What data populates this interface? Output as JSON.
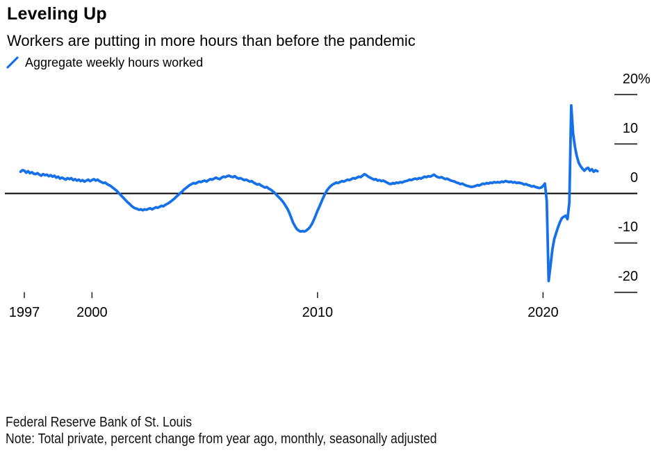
{
  "header": {
    "title": "Leveling Up",
    "subtitle": "Workers are putting in more hours than before the pandemic"
  },
  "legend": {
    "label": "Aggregate weekly hours worked",
    "color": "#1670e8"
  },
  "footer": {
    "source": "Federal Reserve Bank of St. Louis",
    "note": "Note: Total private, percent change from year ago, monthly, seasonally adjusted"
  },
  "chart_data": {
    "type": "line",
    "title": "Leveling Up",
    "subtitle": "Workers are putting in more hours than before the pandemic",
    "ylabel": "percent change from year ago",
    "grid": false,
    "zero_line": true,
    "legend_position": "top-left",
    "axis_color": "#000000",
    "tick_color": "#3d3d3d",
    "xlim": [
      1996.83,
      2022.6
    ],
    "ylim": [
      -22,
      21
    ],
    "x_ticks": [
      {
        "label": "1997",
        "year": 1997
      },
      {
        "label": "2000",
        "year": 2000
      },
      {
        "label": "2010",
        "year": 2010
      },
      {
        "label": "2020",
        "year": 2020
      }
    ],
    "y_ticks": [
      {
        "label": "20",
        "suffix": "%",
        "value": 20
      },
      {
        "label": "10",
        "suffix": "",
        "value": 10
      },
      {
        "label": "0",
        "suffix": "",
        "value": 0
      },
      {
        "label": "-10",
        "suffix": "",
        "value": -10
      },
      {
        "label": "-20",
        "suffix": "",
        "value": -20
      }
    ],
    "series": [
      {
        "name": "Aggregate weekly hours worked",
        "color": "#1670e8",
        "x_start_year": 1996.8333,
        "x_step_years": 0.08333,
        "values": [
          4.4,
          4.7,
          4.6,
          4.2,
          4.5,
          4.1,
          4.3,
          4.0,
          3.9,
          4.1,
          3.8,
          3.6,
          3.9,
          3.7,
          3.8,
          3.5,
          3.7,
          3.4,
          3.6,
          3.2,
          3.4,
          3.0,
          3.2,
          3.0,
          2.8,
          3.1,
          2.9,
          3.1,
          2.7,
          2.9,
          2.6,
          2.8,
          2.5,
          2.7,
          2.4,
          2.6,
          2.8,
          2.5,
          2.7,
          2.9,
          2.6,
          2.8,
          2.5,
          2.3,
          2.1,
          2.2,
          1.9,
          1.7,
          1.5,
          1.2,
          0.9,
          0.6,
          0.2,
          -0.2,
          -0.6,
          -1.0,
          -1.4,
          -1.8,
          -2.1,
          -2.5,
          -2.8,
          -3.0,
          -3.1,
          -3.3,
          -3.2,
          -3.4,
          -3.2,
          -3.3,
          -3.1,
          -3.0,
          -3.2,
          -3.0,
          -2.8,
          -2.9,
          -2.7,
          -2.5,
          -2.6,
          -2.3,
          -2.1,
          -1.9,
          -1.6,
          -1.3,
          -1.0,
          -0.6,
          -0.3,
          0.1,
          0.4,
          0.8,
          1.1,
          1.4,
          1.7,
          1.9,
          2.1,
          2.0,
          2.2,
          2.4,
          2.3,
          2.5,
          2.6,
          2.4,
          2.7,
          2.9,
          2.8,
          3.0,
          3.2,
          3.0,
          2.9,
          3.2,
          3.4,
          3.3,
          3.5,
          3.6,
          3.4,
          3.3,
          3.5,
          3.2,
          3.0,
          3.1,
          2.9,
          2.7,
          2.8,
          2.6,
          2.4,
          2.5,
          2.2,
          2.0,
          1.8,
          1.9,
          1.6,
          1.4,
          1.2,
          1.3,
          1.0,
          0.8,
          0.5,
          0.2,
          -0.2,
          -0.6,
          -1.0,
          -1.4,
          -1.9,
          -2.5,
          -3.1,
          -3.9,
          -4.9,
          -5.9,
          -6.6,
          -7.2,
          -7.5,
          -7.7,
          -7.6,
          -7.7,
          -7.5,
          -7.2,
          -6.8,
          -6.2,
          -5.4,
          -4.5,
          -3.5,
          -2.7,
          -1.8,
          -0.9,
          -0.1,
          0.6,
          1.1,
          1.5,
          1.8,
          2.0,
          2.2,
          2.1,
          2.3,
          2.5,
          2.4,
          2.6,
          2.8,
          2.7,
          2.9,
          3.1,
          3.0,
          3.2,
          3.4,
          3.3,
          3.6,
          3.9,
          3.7,
          3.4,
          3.2,
          3.0,
          2.8,
          2.9,
          2.6,
          2.7,
          2.5,
          2.6,
          2.4,
          2.2,
          2.0,
          1.9,
          2.1,
          2.0,
          2.2,
          2.1,
          2.3,
          2.2,
          2.4,
          2.5,
          2.6,
          2.8,
          2.7,
          2.9,
          3.0,
          2.9,
          3.1,
          3.0,
          3.2,
          3.4,
          3.3,
          3.5,
          3.4,
          3.6,
          3.8,
          3.5,
          3.3,
          3.2,
          3.3,
          3.1,
          2.9,
          3.0,
          2.8,
          2.6,
          2.5,
          2.4,
          2.2,
          2.1,
          1.9,
          2.0,
          1.8,
          1.6,
          1.5,
          1.4,
          1.3,
          1.4,
          1.5,
          1.7,
          1.6,
          1.8,
          2.0,
          1.9,
          2.1,
          2.0,
          2.2,
          2.1,
          2.3,
          2.2,
          2.3,
          2.2,
          2.4,
          2.3,
          2.5,
          2.4,
          2.3,
          2.4,
          2.2,
          2.3,
          2.1,
          2.2,
          2.1,
          2.0,
          1.8,
          1.9,
          1.7,
          1.6,
          1.4,
          1.5,
          1.3,
          1.2,
          1.1,
          1.2,
          1.5,
          2.0,
          -1.5,
          -17.7,
          -14.6,
          -11.3,
          -9.2,
          -8.0,
          -6.8,
          -5.8,
          -5.0,
          -4.7,
          -4.5,
          -5.2,
          -1.8,
          17.8,
          12.1,
          9.4,
          7.5,
          6.2,
          5.5,
          5.0,
          4.6,
          5.0,
          5.2,
          4.6,
          4.9,
          4.4,
          4.7,
          4.5
        ]
      }
    ]
  }
}
